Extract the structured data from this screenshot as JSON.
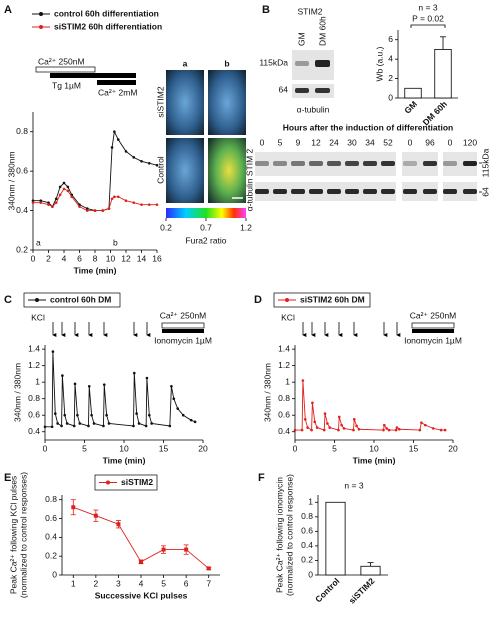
{
  "chart_data": [
    {
      "panel": "A",
      "type": "line",
      "x_label": "Time (min)",
      "y_label": "340nm / 380nm",
      "annotations": [
        "Ca²⁺ 250nM",
        "Tg 1µM",
        "Ca²⁺ 2mM",
        "a",
        "b"
      ],
      "x": [
        0,
        1,
        2,
        2.5,
        3,
        3.5,
        4,
        4.5,
        5,
        6,
        7,
        8,
        9,
        9.8,
        10.2,
        10.5,
        11,
        12,
        13,
        14,
        15,
        16
      ],
      "series": [
        {
          "name": "control 60h differentiation",
          "color": "#111111",
          "values": [
            0.45,
            0.45,
            0.44,
            0.42,
            0.46,
            0.52,
            0.54,
            0.52,
            0.48,
            0.43,
            0.41,
            0.4,
            0.4,
            0.41,
            0.72,
            0.8,
            0.76,
            0.7,
            0.67,
            0.65,
            0.64,
            0.63
          ]
        },
        {
          "name": "siSTIM2 60h differentiation",
          "color": "#e0201b",
          "values": [
            0.44,
            0.44,
            0.43,
            0.42,
            0.44,
            0.48,
            0.51,
            0.5,
            0.47,
            0.42,
            0.4,
            0.4,
            0.4,
            0.41,
            0.46,
            0.47,
            0.47,
            0.45,
            0.44,
            0.43,
            0.43,
            0.43
          ]
        }
      ],
      "xlim": [
        0,
        16
      ],
      "xticks": [
        0,
        2,
        4,
        6,
        8,
        10,
        12,
        14,
        16
      ],
      "ylim": [
        0.2,
        0.9
      ],
      "yticks": [
        0.2,
        0.4,
        0.6,
        0.8
      ]
    },
    {
      "panel": "B",
      "type": "bar",
      "y_label": "Wb (a.u.)",
      "annotations": [
        "n = 3",
        "P = 0.02"
      ],
      "categories": [
        "GM",
        "DM 60h"
      ],
      "values": [
        1,
        5
      ],
      "errors": [
        null,
        1.3
      ],
      "color": "#ffffff",
      "ylim": [
        0,
        7
      ],
      "yticks": [
        0,
        2,
        4,
        6
      ]
    },
    {
      "panel": "C",
      "type": "line",
      "x_label": "Time (min)",
      "y_label": "340nm / 380nm",
      "annotations": [
        "KCl",
        "Ca²⁺ 250nM",
        "Ionomycin 1µM"
      ],
      "x": [
        0,
        0.9,
        1,
        1.3,
        1.6,
        2.1,
        2.2,
        2.5,
        2.8,
        3.7,
        3.8,
        4.1,
        4.4,
        5.5,
        5.6,
        5.9,
        6.2,
        7.4,
        7.5,
        7.8,
        8.1,
        11.2,
        11.3,
        11.6,
        11.9,
        12.8,
        12.9,
        13.2,
        13.5,
        15.8,
        16,
        16.3,
        16.8,
        17.5,
        18.5,
        19
      ],
      "series": [
        {
          "name": "control 60h DM",
          "color": "#111111",
          "values": [
            0.46,
            0.46,
            1.37,
            0.62,
            0.5,
            0.47,
            1.08,
            0.6,
            0.5,
            0.47,
            0.98,
            0.6,
            0.5,
            0.47,
            0.95,
            0.6,
            0.5,
            0.47,
            0.97,
            0.6,
            0.5,
            0.47,
            1.11,
            0.62,
            0.5,
            0.47,
            1.05,
            0.6,
            0.5,
            0.47,
            0.95,
            0.8,
            0.68,
            0.6,
            0.54,
            0.52
          ]
        }
      ],
      "xlim": [
        0,
        20
      ],
      "xticks": [
        0,
        5,
        10,
        15,
        20
      ],
      "ylim": [
        0.3,
        1.45
      ],
      "yticks": [
        0.4,
        0.6,
        0.8,
        1,
        1.2,
        1.4
      ]
    },
    {
      "panel": "D",
      "type": "line",
      "x_label": "Time (min)",
      "y_label": "340nm / 380nm",
      "annotations": [
        "KCl",
        "Ca²⁺ 250nM",
        "Ionomycin 1µM"
      ],
      "x": [
        0,
        0.9,
        1,
        1.3,
        1.6,
        2.1,
        2.2,
        2.5,
        2.8,
        3.7,
        3.8,
        4.1,
        4.4,
        5.5,
        5.6,
        5.9,
        6.2,
        7.4,
        7.5,
        7.8,
        8.1,
        11.2,
        11.3,
        11.6,
        11.9,
        12.8,
        12.9,
        13.2,
        15.8,
        16,
        16.5,
        17.5,
        18.5,
        19
      ],
      "series": [
        {
          "name": "siSTIM2 60h DM",
          "color": "#e0201b",
          "values": [
            0.42,
            0.42,
            1.02,
            0.55,
            0.45,
            0.42,
            0.75,
            0.52,
            0.45,
            0.42,
            0.62,
            0.5,
            0.45,
            0.42,
            0.58,
            0.48,
            0.44,
            0.42,
            0.55,
            0.47,
            0.43,
            0.42,
            0.48,
            0.44,
            0.42,
            0.42,
            0.45,
            0.43,
            0.42,
            0.51,
            0.48,
            0.44,
            0.42,
            0.42
          ]
        }
      ],
      "xlim": [
        0,
        20
      ],
      "xticks": [
        0,
        5,
        10,
        15,
        20
      ],
      "ylim": [
        0.3,
        1.45
      ],
      "yticks": [
        0.4,
        0.6,
        0.8,
        1,
        1.2,
        1.4
      ]
    },
    {
      "panel": "E",
      "type": "line",
      "x_label": "Successive KCl pulses",
      "y_label": [
        "Peak Ca²⁺ following KCl pulses",
        "(normalized to control responses)"
      ],
      "x": [
        1,
        2,
        3,
        4,
        5,
        6,
        7
      ],
      "series": [
        {
          "name": "siSTIM2",
          "color": "#e0201b",
          "values": [
            0.72,
            0.63,
            0.54,
            0.14,
            0.27,
            0.27,
            0.07
          ],
          "errors": [
            0.08,
            0.06,
            0.04,
            0.02,
            0.04,
            0.05,
            0.01
          ]
        }
      ],
      "xlim": [
        0.5,
        7.5
      ],
      "xticks": [
        1,
        2,
        3,
        4,
        5,
        6,
        7
      ],
      "ylim": [
        0,
        0.85
      ],
      "yticks": [
        0,
        0.2,
        0.4,
        0.6,
        0.8
      ]
    },
    {
      "panel": "F",
      "type": "bar",
      "y_label": [
        "Peak Ca²⁺ following ionomycin",
        "(normalized to control response)"
      ],
      "annotations": [
        "n = 3"
      ],
      "categories": [
        "Control",
        "siSTIM2"
      ],
      "values": [
        1,
        0.12
      ],
      "errors": [
        null,
        0.05
      ],
      "color": "#ffffff",
      "ylim": [
        0,
        1.1
      ],
      "yticks": [
        0,
        0.2,
        0.4,
        0.6,
        0.8,
        1
      ]
    }
  ],
  "images": {
    "columns": [
      "a",
      "b"
    ],
    "rows": [
      "siSTIM2",
      "Control"
    ],
    "colorbar": {
      "label": "Fura2 ratio",
      "ticks": [
        0.2,
        0.7,
        1.2
      ]
    }
  },
  "blot_small": {
    "title": "STIM2",
    "lanes": [
      "GM",
      "DM 60h"
    ],
    "markers": [
      "115kDa",
      "64"
    ],
    "loading": "α-tubulin"
  },
  "blot_time": {
    "title": "Hours after the induction of differentiation",
    "lanes": [
      "0",
      "5",
      "9",
      "12",
      "24",
      "30",
      "34",
      "52",
      "0",
      "96",
      "0",
      "120"
    ],
    "row_label": "α-tubulin STIM 2",
    "markers": [
      "115kDa",
      "64"
    ]
  }
}
